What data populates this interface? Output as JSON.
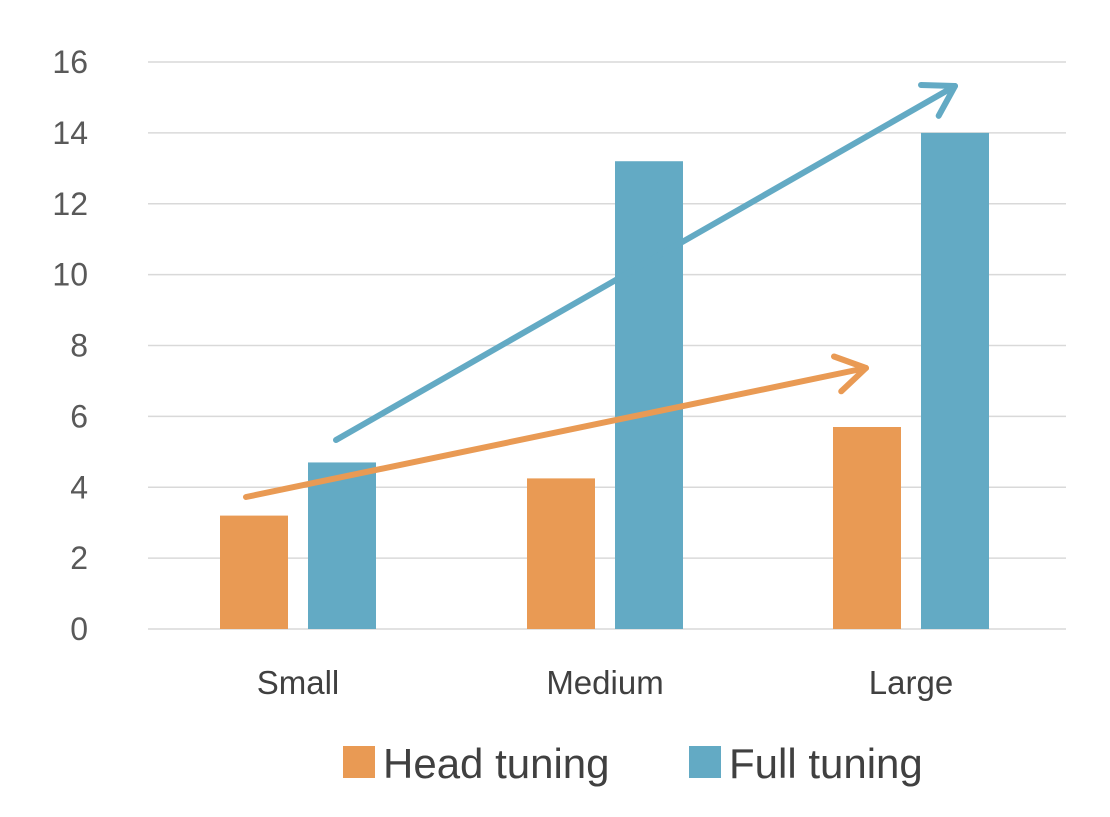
{
  "chart_data": {
    "type": "bar",
    "categories": [
      "Small",
      "Medium",
      "Large"
    ],
    "series": [
      {
        "name": "Head tuning",
        "values": [
          3.2,
          4.25,
          5.7
        ],
        "color": "#E99A54"
      },
      {
        "name": "Full tuning",
        "values": [
          4.7,
          13.2,
          14.0
        ],
        "color": "#63AAC4"
      }
    ],
    "ylim": [
      0,
      16
    ],
    "yticks": [
      0,
      2,
      4,
      6,
      8,
      10,
      12,
      14,
      16
    ],
    "grid": true,
    "legend": "bottom",
    "annotations": [
      {
        "kind": "trend-arrow",
        "series": "Head tuning",
        "color": "#E99A54"
      },
      {
        "kind": "trend-arrow",
        "series": "Full tuning",
        "color": "#63AAC4"
      }
    ]
  }
}
